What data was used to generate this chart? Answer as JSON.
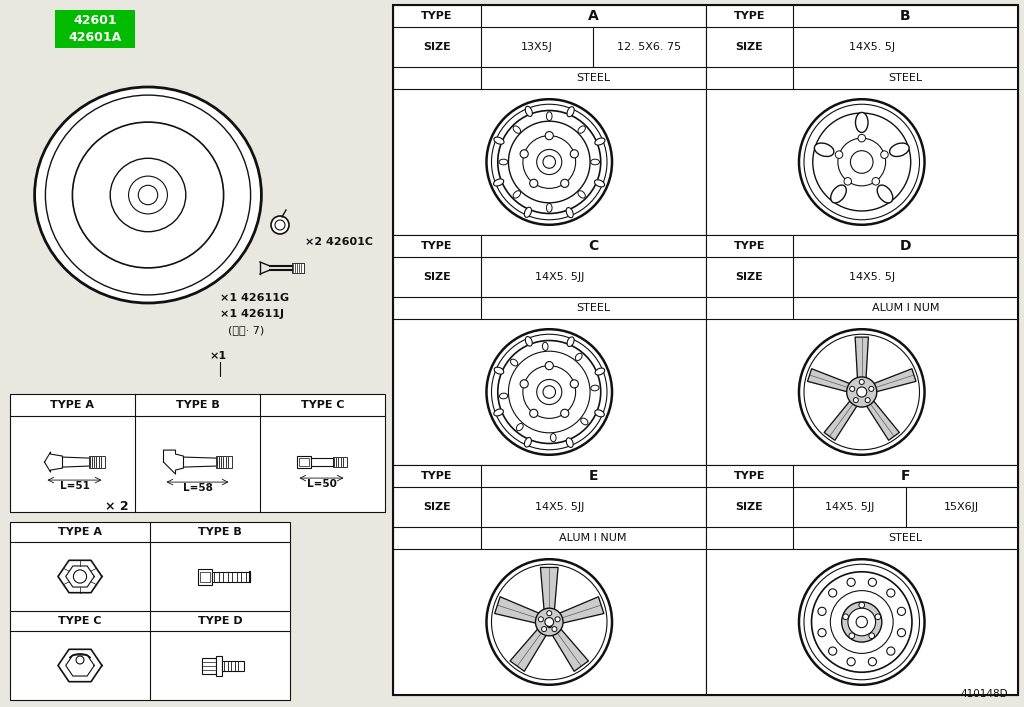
{
  "bg_color": "#e8e8e0",
  "white": "#ffffff",
  "line_color": "#111111",
  "green_bg": "#00bb00",
  "label_42601": "42601\n42601A",
  "label_42601c": "×2 42601C",
  "label_42611g": "×1 42611G",
  "label_42611j": "×1 42611J",
  "label_spare": "(スペ· 7)",
  "label_x1": "×1",
  "valve_type_a": "TYPE A",
  "valve_type_b": "TYPE B",
  "valve_type_c": "TYPE C",
  "valve_la": "L=51",
  "valve_lb": "L=58",
  "valve_lc": "L=50",
  "nut_label": "× 2",
  "nut_type_a": "TYPE A",
  "nut_type_b": "TYPE B",
  "nut_type_c": "TYPE C",
  "nut_type_d": "TYPE D",
  "wheel_types": [
    "A",
    "B",
    "C",
    "D",
    "E",
    "F"
  ],
  "type_a_sizes": [
    "13X5J",
    "12. 5X6. 75"
  ],
  "type_a_material": "STEEL",
  "type_b_sizes": [
    "14X5. 5J"
  ],
  "type_b_material": "STEEL",
  "type_c_sizes": [
    "14X5. 5JJ"
  ],
  "type_c_material": "STEEL",
  "type_d_sizes": [
    "14X5. 5J"
  ],
  "type_d_material": "ALUM I NUM",
  "type_e_sizes": [
    "14X5. 5JJ"
  ],
  "type_e_material": "ALUM I NUM",
  "type_f_sizes": [
    "14X5. 5JJ",
    "15X6JJ"
  ],
  "type_f_material": "STEEL",
  "footer": "410148D"
}
